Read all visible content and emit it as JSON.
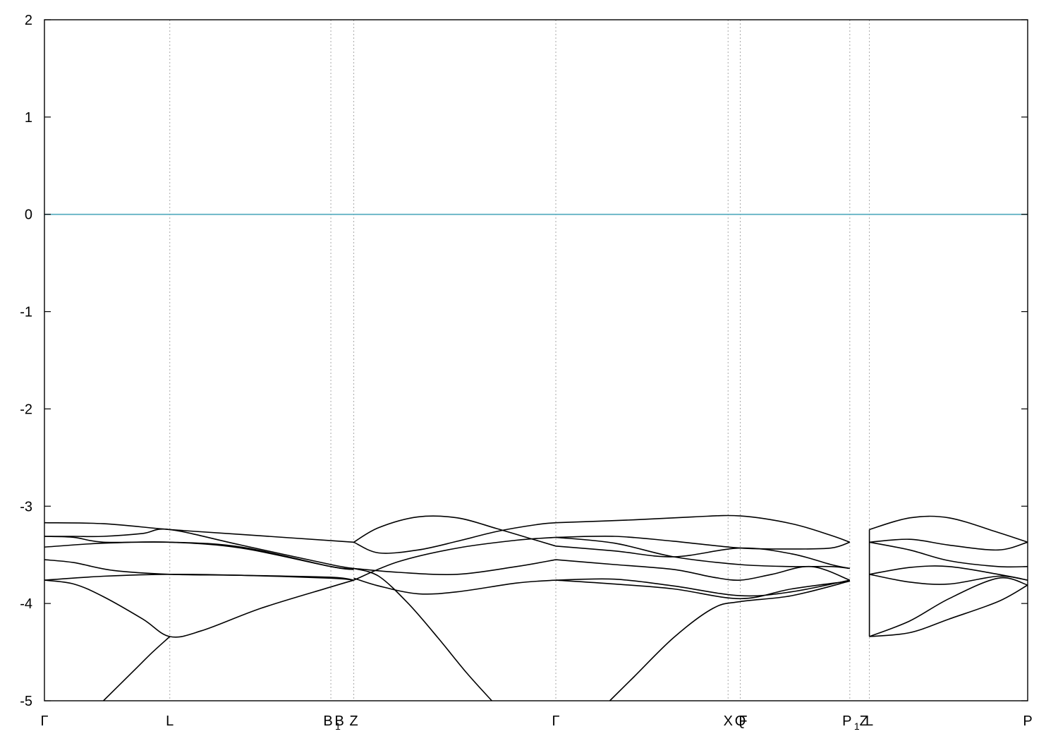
{
  "chart_data": {
    "type": "line",
    "title": "",
    "xlabel": "",
    "ylabel": "",
    "xlim": [
      0,
      1000
    ],
    "ylim": [
      -5,
      2
    ],
    "yticks": [
      2,
      1,
      0,
      -1,
      -2,
      -3,
      -4,
      -5
    ],
    "ytick_labels": [
      "2",
      "1",
      "0",
      "-1",
      "-2",
      "-3",
      "-4",
      "-5"
    ],
    "reference_line": {
      "y": 0,
      "color": "#5aaec0"
    },
    "kpoints": [
      {
        "label": "Γ",
        "sub": "",
        "x": 0
      },
      {
        "label": "L",
        "sub": "",
        "x": 127.5
      },
      {
        "label": "B",
        "sub": "1",
        "x": 291.3
      },
      {
        "label": "B",
        "sub": "",
        "x": 300
      },
      {
        "label": "Z",
        "sub": "",
        "x": 314.6
      },
      {
        "label": "Γ",
        "sub": "",
        "x": 520.1
      },
      {
        "label": "X",
        "sub": "",
        "x": 695.3
      },
      {
        "label": "Q",
        "sub": "",
        "x": 707.7
      },
      {
        "label": "F",
        "sub": "",
        "x": 707.7
      },
      {
        "label": "P",
        "sub": "1",
        "x": 819.1
      },
      {
        "label": "Z",
        "sub": "",
        "x": 833.4
      },
      {
        "label": "L",
        "sub": "",
        "x": 839
      },
      {
        "label": "P",
        "sub": "",
        "x": 1000
      }
    ],
    "segment_dividers": [
      127.5,
      291.3,
      314.6,
      520.1,
      695.3,
      707.7,
      819.1,
      839
    ],
    "grid": false,
    "series_color": "#000000",
    "series": [
      {
        "x": [
          0,
          60,
          127.5,
          200,
          314.6
        ],
        "y": [
          -3.17,
          -3.18,
          -3.24,
          -3.29,
          -3.37
        ]
      },
      {
        "x": [
          0,
          30,
          60,
          100,
          127.5,
          200,
          291.3,
          314.6
        ],
        "y": [
          -3.31,
          -3.31,
          -3.31,
          -3.28,
          -3.24,
          -3.4,
          -3.6,
          -3.64
        ]
      },
      {
        "x": [
          0,
          60,
          127.5,
          200,
          291.3,
          314.6
        ],
        "y": [
          -3.42,
          -3.38,
          -3.37,
          -3.42,
          -3.62,
          -3.65
        ]
      },
      {
        "x": [
          0,
          30,
          60,
          127.5,
          200,
          291.3,
          314.6
        ],
        "y": [
          -3.31,
          -3.32,
          -3.37,
          -3.37,
          -3.43,
          -3.62,
          -3.64
        ]
      },
      {
        "x": [
          0,
          30,
          70,
          127.5,
          200,
          291.3,
          314.6
        ],
        "y": [
          -3.55,
          -3.58,
          -3.66,
          -3.7,
          -3.71,
          -3.73,
          -3.76
        ]
      },
      {
        "x": [
          0,
          60,
          127.5,
          200,
          291.3,
          314.6
        ],
        "y": [
          -3.76,
          -3.72,
          -3.7,
          -3.71,
          -3.74,
          -3.76
        ]
      },
      {
        "x": [
          0,
          30,
          60,
          100,
          127.5,
          160,
          220,
          291.3,
          314.6
        ],
        "y": [
          -3.76,
          -3.8,
          -3.93,
          -4.16,
          -4.34,
          -4.28,
          -4.05,
          -3.83,
          -3.76
        ]
      },
      {
        "x": [
          60,
          90,
          110,
          127.5
        ],
        "y": [
          -5,
          -4.7,
          -4.5,
          -4.34
        ]
      },
      {
        "x": [
          314.6,
          340,
          370,
          400,
          430,
          455
        ],
        "y": [
          -3.64,
          -3.72,
          -4.0,
          -4.35,
          -4.72,
          -5
        ]
      },
      {
        "x": [
          314.6,
          340,
          380,
          420,
          460,
          500,
          520.1
        ],
        "y": [
          -3.37,
          -3.22,
          -3.11,
          -3.12,
          -3.23,
          -3.35,
          -3.41
        ]
      },
      {
        "x": [
          314.6,
          340,
          380,
          420,
          460,
          500,
          520.1
        ],
        "y": [
          -3.37,
          -3.48,
          -3.45,
          -3.36,
          -3.26,
          -3.19,
          -3.17
        ]
      },
      {
        "x": [
          314.6,
          360,
          420,
          480,
          520.1
        ],
        "y": [
          -3.76,
          -3.57,
          -3.43,
          -3.35,
          -3.32
        ]
      },
      {
        "x": [
          314.6,
          360,
          420,
          480,
          520.1
        ],
        "y": [
          -3.64,
          -3.68,
          -3.7,
          -3.62,
          -3.55
        ]
      },
      {
        "x": [
          314.6,
          340,
          380,
          420,
          480,
          520.1
        ],
        "y": [
          -3.74,
          -3.82,
          -3.9,
          -3.88,
          -3.79,
          -3.76
        ]
      },
      {
        "x": [
          520.1,
          600,
          660,
          707.7,
          760,
          800,
          819.1
        ],
        "y": [
          -3.17,
          -3.14,
          -3.11,
          -3.1,
          -3.18,
          -3.3,
          -3.37
        ]
      },
      {
        "x": [
          520.1,
          580,
          640,
          707.7,
          760,
          800,
          819.1
        ],
        "y": [
          -3.32,
          -3.31,
          -3.36,
          -3.43,
          -3.44,
          -3.43,
          -3.37
        ]
      },
      {
        "x": [
          520.1,
          580,
          640,
          707.7,
          760,
          800,
          819.1
        ],
        "y": [
          -3.41,
          -3.46,
          -3.52,
          -3.43,
          -3.49,
          -3.6,
          -3.64
        ]
      },
      {
        "x": [
          520.1,
          580,
          640,
          707.7,
          760,
          800,
          819.1
        ],
        "y": [
          -3.32,
          -3.38,
          -3.52,
          -3.6,
          -3.62,
          -3.62,
          -3.64
        ]
      },
      {
        "x": [
          520.1,
          580,
          640,
          680,
          707.7,
          740,
          780,
          819.1
        ],
        "y": [
          -3.55,
          -3.6,
          -3.65,
          -3.73,
          -3.76,
          -3.7,
          -3.62,
          -3.76
        ]
      },
      {
        "x": [
          520.1,
          580,
          640,
          707.7,
          760,
          819.1
        ],
        "y": [
          -3.76,
          -3.75,
          -3.82,
          -3.92,
          -3.88,
          -3.76
        ]
      },
      {
        "x": [
          520.1,
          580,
          640,
          707.7,
          760,
          819.1
        ],
        "y": [
          -3.76,
          -3.8,
          -3.85,
          -3.95,
          -3.85,
          -3.77
        ]
      },
      {
        "x": [
          575,
          600,
          640,
          680,
          707.7,
          760,
          819.1
        ],
        "y": [
          -5,
          -4.75,
          -4.35,
          -4.05,
          -3.98,
          -3.92,
          -3.77
        ]
      },
      {
        "x": [
          839,
          839
        ],
        "y": [
          -3.24,
          -4.34
        ]
      },
      {
        "x": [
          839,
          880,
          920,
          970,
          1000
        ],
        "y": [
          -3.24,
          -3.12,
          -3.12,
          -3.27,
          -3.37
        ]
      },
      {
        "x": [
          839,
          880,
          920,
          970,
          1000
        ],
        "y": [
          -3.37,
          -3.34,
          -3.4,
          -3.45,
          -3.37
        ]
      },
      {
        "x": [
          839,
          880,
          920,
          970,
          1000
        ],
        "y": [
          -3.37,
          -3.45,
          -3.56,
          -3.62,
          -3.62
        ]
      },
      {
        "x": [
          839,
          880,
          920,
          970,
          1000
        ],
        "y": [
          -3.7,
          -3.63,
          -3.62,
          -3.7,
          -3.76
        ]
      },
      {
        "x": [
          839,
          880,
          920,
          970,
          1000
        ],
        "y": [
          -3.7,
          -3.78,
          -3.8,
          -3.72,
          -3.76
        ]
      },
      {
        "x": [
          839,
          880,
          920,
          970,
          1000
        ],
        "y": [
          -4.34,
          -4.18,
          -3.95,
          -3.74,
          -3.81
        ]
      },
      {
        "x": [
          839,
          880,
          920,
          970,
          1000
        ],
        "y": [
          -4.34,
          -4.3,
          -4.16,
          -3.98,
          -3.81
        ]
      }
    ]
  }
}
